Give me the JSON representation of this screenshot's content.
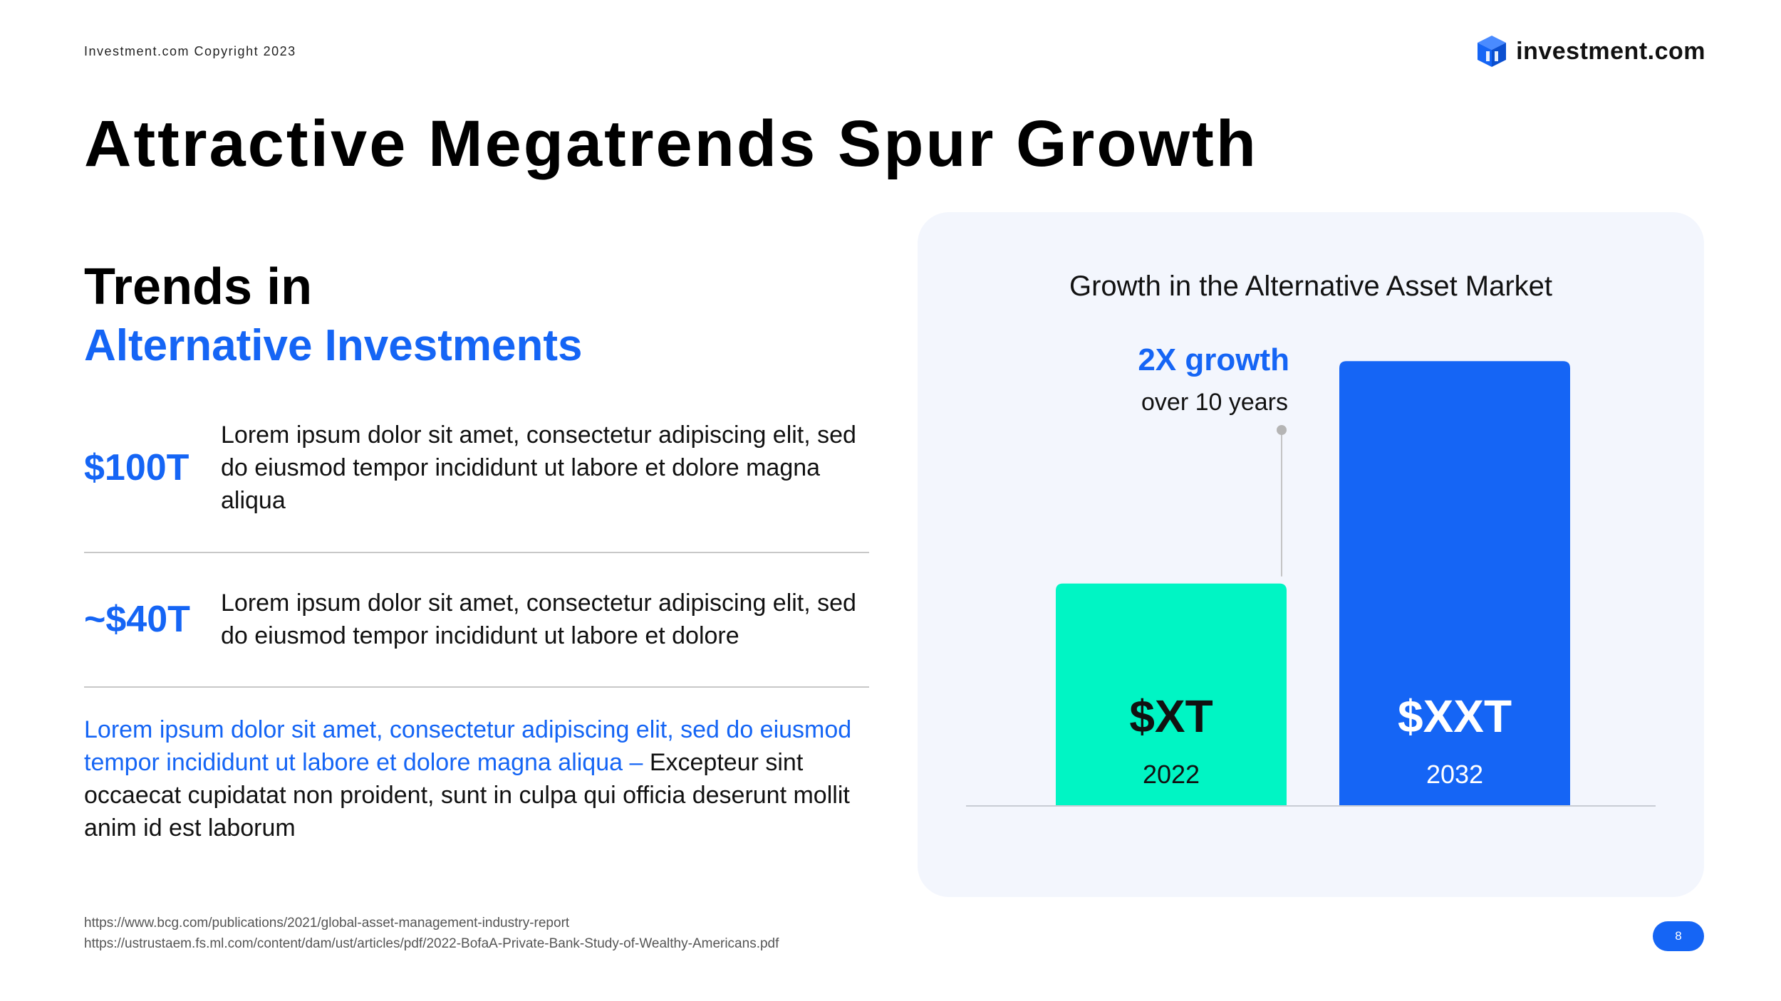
{
  "header": {
    "copyright": "Investment.com Copyright 2023",
    "logo_text": "investment.com",
    "logo_icon": "cube-logo-icon"
  },
  "title": "Attractive Megatrends Spur Growth",
  "trends": {
    "heading": "Trends in",
    "subheading": "Alternative Investments"
  },
  "stats": [
    {
      "value": "$100T",
      "text": "Lorem ipsum dolor sit amet, consectetur adipiscing elit, sed do eiusmod tempor incididunt ut labore et dolore magna aliqua"
    },
    {
      "value": "~$40T",
      "text": "Lorem ipsum dolor sit amet, consectetur adipiscing elit, sed do eiusmod tempor incididunt ut labore et dolore"
    }
  ],
  "note": {
    "highlight": "Lorem ipsum dolor sit amet, consectetur adipiscing elit, sed do eiusmod tempor incididunt ut labore et dolore magna aliqua –",
    "body": "Excepteur sint occaecat cupidatat non proident, sunt in culpa qui officia deserunt mollit anim id est laborum"
  },
  "sources": [
    "https://www.bcg.com/publications/2021/global-asset-management-industry-report",
    "https://ustrustaem.fs.ml.com/content/dam/ust/articles/pdf/2022-BofaA-Private-Bank-Study-of-Wealthy-Americans.pdf"
  ],
  "page_number": "8",
  "colors": {
    "accent_blue": "#1565F5",
    "accent_green": "#00F5C4",
    "panel_bg": "#F3F6FD"
  },
  "chart_data": {
    "type": "bar",
    "title": "Growth in the Alternative Asset Market",
    "categories": [
      "2022",
      "2032"
    ],
    "values": [
      1,
      2
    ],
    "value_labels": [
      "$XT",
      "$XXT"
    ],
    "bar_colors": [
      "#00F5C4",
      "#1565F5"
    ],
    "ylim": [
      0,
      2.1
    ],
    "grid": false,
    "annotation": {
      "headline": "2X growth",
      "subtext": "over 10 years"
    }
  }
}
